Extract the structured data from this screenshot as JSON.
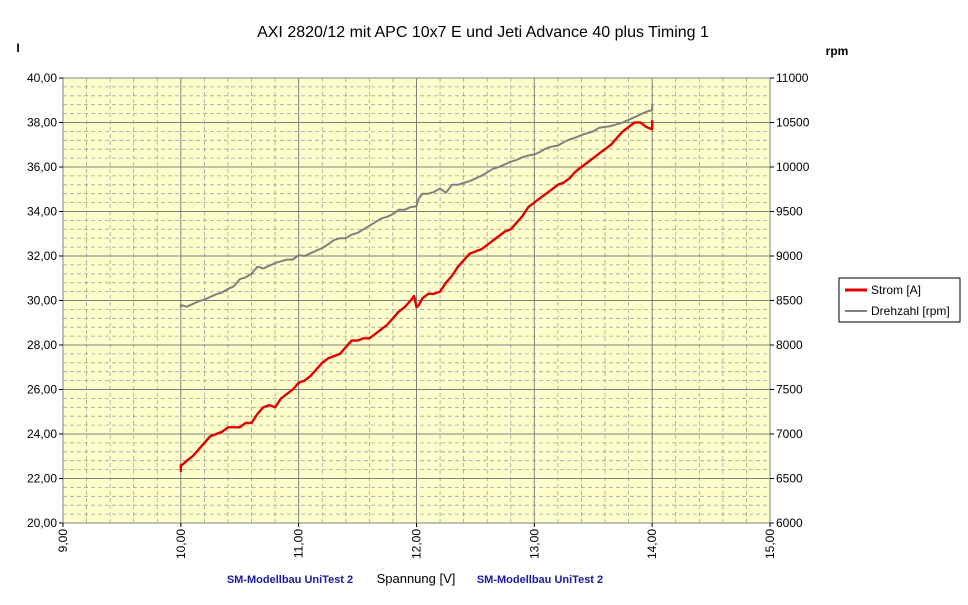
{
  "chart_data": {
    "type": "line",
    "title": "AXI 2820/12 mit APC 10x7 E und Jeti Advance 40 plus Timing 1",
    "xlabel": "Spannung [V]",
    "ylabel_left": "I",
    "ylabel_right": "rpm",
    "xlim": [
      9,
      15
    ],
    "ylim_left": [
      20,
      40
    ],
    "ylim_right": [
      6000,
      11000
    ],
    "x_ticks": [
      "9,00",
      "10,00",
      "11,00",
      "12,00",
      "13,00",
      "14,00",
      "15,00"
    ],
    "y_ticks_left": [
      "20,00",
      "22,00",
      "24,00",
      "26,00",
      "28,00",
      "30,00",
      "32,00",
      "34,00",
      "36,00",
      "38,00",
      "40,00"
    ],
    "y_ticks_right": [
      "6000",
      "6500",
      "7000",
      "7500",
      "8000",
      "8500",
      "9000",
      "9500",
      "10000",
      "10500",
      "11000"
    ],
    "grid": true,
    "legend_position": "right",
    "annotations": [
      "SM-Modellbau UniTest 2",
      "SM-Modellbau UniTest 2"
    ],
    "colors": {
      "plot_background": "#ffffcc",
      "strom": "#e00000",
      "drehzahl": "#808080"
    },
    "series": [
      {
        "name": "Strom [A]",
        "axis": "left",
        "x": [
          10.0,
          10.0,
          10.01,
          10.05,
          10.1,
          10.15,
          10.2,
          10.25,
          10.3,
          10.35,
          10.4,
          10.45,
          10.5,
          10.55,
          10.6,
          10.65,
          10.7,
          10.75,
          10.8,
          10.85,
          10.9,
          10.95,
          11.0,
          11.05,
          11.1,
          11.15,
          11.2,
          11.25,
          11.3,
          11.35,
          11.4,
          11.45,
          11.5,
          11.55,
          11.6,
          11.65,
          11.7,
          11.75,
          11.8,
          11.85,
          11.9,
          11.95,
          11.98,
          12.0,
          12.02,
          12.05,
          12.1,
          12.15,
          12.2,
          12.25,
          12.3,
          12.35,
          12.4,
          12.45,
          12.5,
          12.55,
          12.6,
          12.65,
          12.7,
          12.75,
          12.8,
          12.85,
          12.9,
          12.95,
          13.0,
          13.05,
          13.1,
          13.15,
          13.2,
          13.25,
          13.3,
          13.35,
          13.4,
          13.45,
          13.5,
          13.55,
          13.6,
          13.65,
          13.7,
          13.75,
          13.8,
          13.85,
          13.9,
          13.95,
          14.0,
          14.0
        ],
        "y": [
          22.3,
          22.6,
          22.6,
          22.8,
          23.0,
          23.3,
          23.6,
          23.9,
          24.0,
          24.1,
          24.3,
          24.3,
          24.3,
          24.5,
          24.5,
          24.9,
          25.2,
          25.3,
          25.2,
          25.6,
          25.8,
          26.0,
          26.3,
          26.4,
          26.6,
          26.9,
          27.2,
          27.4,
          27.5,
          27.6,
          27.9,
          28.2,
          28.2,
          28.3,
          28.3,
          28.5,
          28.7,
          28.9,
          29.2,
          29.5,
          29.7,
          30.0,
          30.2,
          29.7,
          29.8,
          30.1,
          30.3,
          30.3,
          30.4,
          30.8,
          31.1,
          31.5,
          31.8,
          32.1,
          32.2,
          32.3,
          32.5,
          32.7,
          32.9,
          33.1,
          33.2,
          33.5,
          33.8,
          34.2,
          34.4,
          34.6,
          34.8,
          35.0,
          35.2,
          35.3,
          35.5,
          35.8,
          36.0,
          36.2,
          36.4,
          36.6,
          36.8,
          37.0,
          37.3,
          37.6,
          37.8,
          38.0,
          38.0,
          37.8,
          37.7,
          38.1
        ]
      },
      {
        "name": "Drehzahl [rpm]",
        "axis": "right",
        "x": [
          10.0,
          10.0,
          10.05,
          10.1,
          10.15,
          10.2,
          10.25,
          10.3,
          10.35,
          10.4,
          10.45,
          10.5,
          10.55,
          10.6,
          10.65,
          10.7,
          10.75,
          10.8,
          10.85,
          10.9,
          10.95,
          11.0,
          11.05,
          11.1,
          11.15,
          11.2,
          11.25,
          11.3,
          11.35,
          11.4,
          11.45,
          11.5,
          11.55,
          11.6,
          11.65,
          11.7,
          11.75,
          11.8,
          11.85,
          11.9,
          11.95,
          12.0,
          12.02,
          12.05,
          12.1,
          12.15,
          12.2,
          12.25,
          12.3,
          12.35,
          12.4,
          12.45,
          12.5,
          12.55,
          12.6,
          12.65,
          12.7,
          12.75,
          12.8,
          12.85,
          12.9,
          12.95,
          13.0,
          13.05,
          13.1,
          13.15,
          13.2,
          13.25,
          13.3,
          13.35,
          13.4,
          13.45,
          13.5,
          13.55,
          13.6,
          13.65,
          13.7,
          13.75,
          13.8,
          13.85,
          13.9,
          13.95,
          14.0,
          14.0
        ],
        "y": [
          8420,
          8450,
          8430,
          8460,
          8490,
          8510,
          8540,
          8570,
          8590,
          8630,
          8660,
          8740,
          8760,
          8800,
          8880,
          8860,
          8890,
          8920,
          8940,
          8960,
          8960,
          9010,
          9000,
          9030,
          9060,
          9090,
          9130,
          9180,
          9200,
          9200,
          9240,
          9260,
          9300,
          9340,
          9380,
          9420,
          9440,
          9470,
          9520,
          9520,
          9550,
          9560,
          9650,
          9700,
          9700,
          9720,
          9760,
          9710,
          9800,
          9800,
          9820,
          9840,
          9870,
          9900,
          9940,
          9980,
          10000,
          10030,
          10060,
          10080,
          10110,
          10130,
          10140,
          10170,
          10210,
          10230,
          10240,
          10280,
          10310,
          10330,
          10360,
          10380,
          10400,
          10440,
          10450,
          10460,
          10480,
          10500,
          10530,
          10560,
          10590,
          10620,
          10640,
          10710
        ]
      }
    ]
  }
}
